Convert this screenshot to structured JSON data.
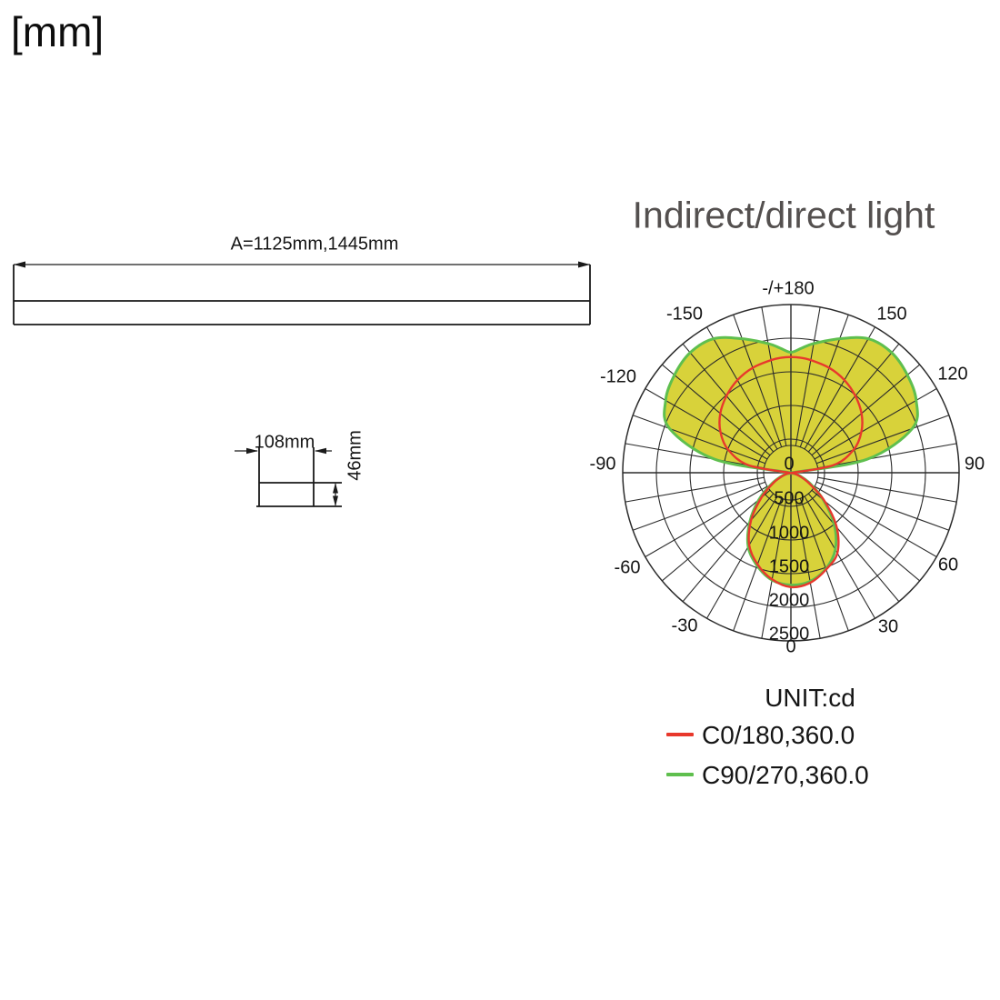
{
  "unit_system_label": "[mm]",
  "length_view": {
    "dimension_label": "A=1125mm,1445mm"
  },
  "profile_view": {
    "width_label": "108mm",
    "height_label": "46mm"
  },
  "polar_chart": {
    "title": "Indirect/direct light",
    "unit_label": "UNIT:cd",
    "angle_labels": [
      "-/+180",
      "-150",
      "150",
      "-120",
      "120",
      "-90",
      "90",
      "-60",
      "60",
      "-30",
      "30",
      "0"
    ],
    "radial_labels": [
      "0",
      "500",
      "1000",
      "1500",
      "2000",
      "2500"
    ],
    "legend": [
      {
        "label": "C0/180,360.0",
        "color": "#e8382c"
      },
      {
        "label": "C90/270,360.0",
        "color": "#5fbf4e"
      }
    ]
  },
  "chart_data": {
    "type": "polar",
    "title": "Indirect/direct light",
    "unit": "cd",
    "angle_convention": "0 = nadir (bottom), +/-90 horizontal, 180 = zenith (top); negative angles on left",
    "radial_ticks": [
      500,
      1000,
      1500,
      2000,
      2500
    ],
    "radial_max": 2500,
    "angle_grid_step_deg": 10,
    "angle_label_step_deg": 30,
    "series": [
      {
        "name": "C0/180,360.0",
        "color": "#e8382c",
        "points": [
          [
            -180,
            1720
          ],
          [
            -175,
            1715
          ],
          [
            -170,
            1700
          ],
          [
            -160,
            1660
          ],
          [
            -150,
            1590
          ],
          [
            -140,
            1490
          ],
          [
            -130,
            1370
          ],
          [
            -120,
            1210
          ],
          [
            -110,
            990
          ],
          [
            -100,
            640
          ],
          [
            -90,
            20
          ],
          [
            -80,
            30
          ],
          [
            -70,
            120
          ],
          [
            -60,
            300
          ],
          [
            -50,
            570
          ],
          [
            -40,
            920
          ],
          [
            -30,
            1240
          ],
          [
            -20,
            1450
          ],
          [
            -10,
            1610
          ],
          [
            0,
            1700
          ],
          [
            10,
            1660
          ],
          [
            20,
            1530
          ],
          [
            30,
            1380
          ],
          [
            40,
            1060
          ],
          [
            50,
            650
          ],
          [
            60,
            310
          ],
          [
            70,
            130
          ],
          [
            80,
            30
          ],
          [
            90,
            20
          ],
          [
            100,
            640
          ],
          [
            110,
            990
          ],
          [
            120,
            1210
          ],
          [
            130,
            1370
          ],
          [
            140,
            1490
          ],
          [
            150,
            1590
          ],
          [
            160,
            1660
          ],
          [
            170,
            1700
          ],
          [
            175,
            1715
          ]
        ]
      },
      {
        "name": "C90/270,360.0",
        "color": "#5fbf4e",
        "fill": "#d8d23a",
        "points": [
          [
            -180,
            1790
          ],
          [
            -175,
            1860
          ],
          [
            -170,
            1950
          ],
          [
            -160,
            2120
          ],
          [
            -150,
            2300
          ],
          [
            -140,
            2330
          ],
          [
            -130,
            2260
          ],
          [
            -120,
            2150
          ],
          [
            -110,
            1920
          ],
          [
            -100,
            1150
          ],
          [
            -90,
            10
          ],
          [
            -80,
            40
          ],
          [
            -70,
            140
          ],
          [
            -60,
            330
          ],
          [
            -50,
            620
          ],
          [
            -40,
            950
          ],
          [
            -30,
            1270
          ],
          [
            -20,
            1470
          ],
          [
            -10,
            1620
          ],
          [
            0,
            1670
          ],
          [
            10,
            1640
          ],
          [
            20,
            1520
          ],
          [
            30,
            1320
          ],
          [
            40,
            1000
          ],
          [
            50,
            630
          ],
          [
            60,
            340
          ],
          [
            70,
            150
          ],
          [
            80,
            40
          ],
          [
            90,
            10
          ],
          [
            100,
            1150
          ],
          [
            110,
            1920
          ],
          [
            120,
            2150
          ],
          [
            130,
            2260
          ],
          [
            140,
            2330
          ],
          [
            150,
            2300
          ],
          [
            160,
            2120
          ],
          [
            170,
            1950
          ],
          [
            175,
            1860
          ]
        ]
      }
    ]
  }
}
